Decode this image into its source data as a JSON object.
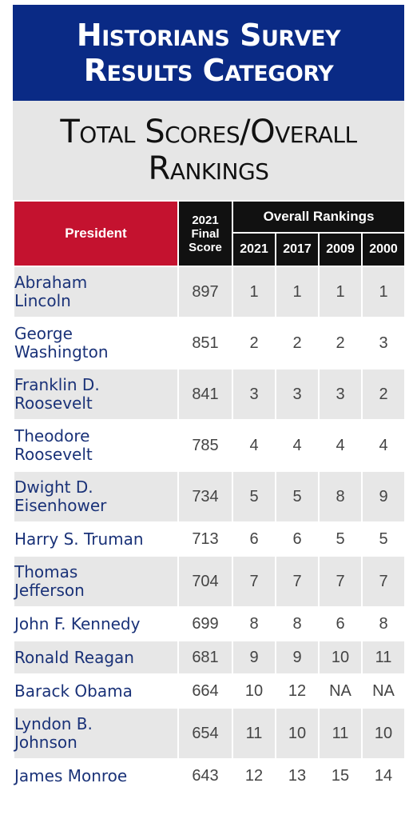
{
  "banner": {
    "line1": "Historians Survey",
    "line2": "Results Category"
  },
  "subtitle": {
    "line1": "Total Scores/Overall",
    "line2": "Rankings"
  },
  "table": {
    "president_header": "President",
    "score_header": [
      "2021",
      "Final",
      "Score"
    ],
    "overall_header": "Overall Rankings",
    "years": [
      "2021",
      "2017",
      "2009",
      "2000"
    ],
    "rows": [
      {
        "name": "Abraham Lincoln",
        "score": "897",
        "r2021": "1",
        "r2017": "1",
        "r2009": "1",
        "r2000": "1"
      },
      {
        "name": "George Washington",
        "score": "851",
        "r2021": "2",
        "r2017": "2",
        "r2009": "2",
        "r2000": "3"
      },
      {
        "name": "Franklin D. Roosevelt",
        "score": "841",
        "r2021": "3",
        "r2017": "3",
        "r2009": "3",
        "r2000": "2"
      },
      {
        "name": "Theodore Roosevelt",
        "score": "785",
        "r2021": "4",
        "r2017": "4",
        "r2009": "4",
        "r2000": "4"
      },
      {
        "name": "Dwight D. Eisenhower",
        "score": "734",
        "r2021": "5",
        "r2017": "5",
        "r2009": "8",
        "r2000": "9"
      },
      {
        "name": "Harry S. Truman",
        "score": "713",
        "r2021": "6",
        "r2017": "6",
        "r2009": "5",
        "r2000": "5"
      },
      {
        "name": "Thomas Jefferson",
        "score": "704",
        "r2021": "7",
        "r2017": "7",
        "r2009": "7",
        "r2000": "7"
      },
      {
        "name": "John F. Kennedy",
        "score": "699",
        "r2021": "8",
        "r2017": "8",
        "r2009": "6",
        "r2000": "8"
      },
      {
        "name": "Ronald Reagan",
        "score": "681",
        "r2021": "9",
        "r2017": "9",
        "r2009": "10",
        "r2000": "11"
      },
      {
        "name": "Barack Obama",
        "score": "664",
        "r2021": "10",
        "r2017": "12",
        "r2009": "NA",
        "r2000": "NA"
      },
      {
        "name": "Lyndon B. Johnson",
        "score": "654",
        "r2021": "11",
        "r2017": "10",
        "r2009": "11",
        "r2000": "10"
      },
      {
        "name": "James Monroe",
        "score": "643",
        "r2021": "12",
        "r2017": "13",
        "r2009": "15",
        "r2000": "14"
      }
    ]
  }
}
